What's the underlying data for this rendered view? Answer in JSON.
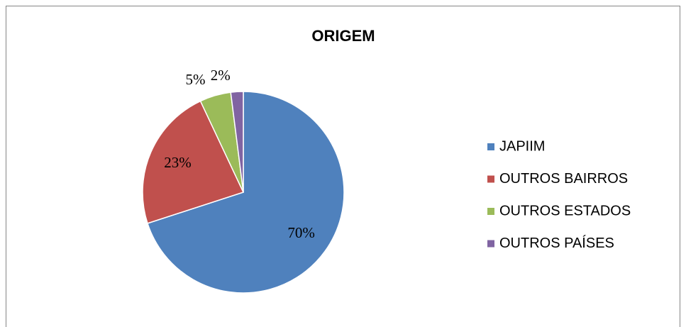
{
  "chart_data": {
    "type": "pie",
    "title": "ORIGEM",
    "categories": [
      "JAPIIM",
      "OUTROS BAIRROS",
      "OUTROS ESTADOS",
      "OUTROS PAÍSES"
    ],
    "values": [
      70,
      23,
      5,
      2
    ],
    "value_labels": [
      "70%",
      "23%",
      "5%",
      "2%"
    ],
    "colors": [
      "#4f81bd",
      "#c0504d",
      "#9bbb59",
      "#8064a2"
    ],
    "legend": "right"
  }
}
